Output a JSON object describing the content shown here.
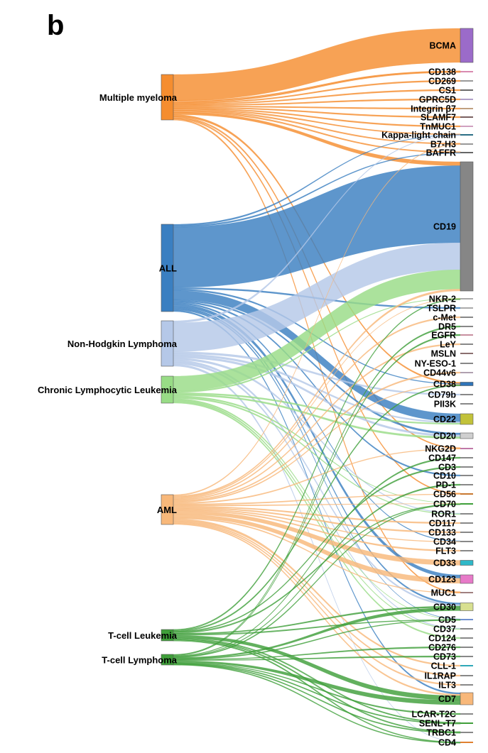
{
  "panel_label": "b",
  "chart_data": {
    "type": "sankey",
    "sources": [
      {
        "label": "Multiple myeloma",
        "color": "#f58d2f"
      },
      {
        "label": "ALL",
        "color": "#3a7fc1"
      },
      {
        "label": "Non-Hodgkin Lymphoma",
        "color": "#b5c8e8"
      },
      {
        "label": "Chronic Lymphocytic Leukemia",
        "color": "#98dc86"
      },
      {
        "label": "AML",
        "color": "#f8b87a"
      },
      {
        "label": "T-cell Leukemia",
        "color": "#3f9f3a"
      },
      {
        "label": "T-cell Lymphoma",
        "color": "#3f9f3a"
      }
    ],
    "targets": [
      {
        "label": "BCMA",
        "color": "#9b6bc9"
      },
      {
        "label": "CD138",
        "color": "#d98ab0"
      },
      {
        "label": "CD269",
        "color": "#999999"
      },
      {
        "label": "CS1",
        "color": "#6a6a6a"
      },
      {
        "label": "GPRC5D",
        "color": "#b0a0c8"
      },
      {
        "label": "Integrin β7",
        "color": "#c0a080"
      },
      {
        "label": "SLAMF7",
        "color": "#7a6060"
      },
      {
        "label": "TnMUC1",
        "color": "#d0a0c0"
      },
      {
        "label": "Kappa-light chain",
        "color": "#2b6f86"
      },
      {
        "label": "B7-H3",
        "color": "#999999"
      },
      {
        "label": "BAFFR",
        "color": "#666666"
      },
      {
        "label": "CD19",
        "color": "#868686"
      },
      {
        "label": "NKR-2",
        "color": "#aaaaaa"
      },
      {
        "label": "TSLPR",
        "color": "#aaaaaa"
      },
      {
        "label": "c-Met",
        "color": "#888888"
      },
      {
        "label": "DR5",
        "color": "#888888"
      },
      {
        "label": "EGFR",
        "color": "#c88fa0"
      },
      {
        "label": "LeY",
        "color": "#888888"
      },
      {
        "label": "MSLN",
        "color": "#8a6f6f"
      },
      {
        "label": "NY-ESO-1",
        "color": "#888888"
      },
      {
        "label": "CD44v6",
        "color": "#b0a0b0"
      },
      {
        "label": "CD38",
        "color": "#2f74b8"
      },
      {
        "label": "CD79b",
        "color": "#888888"
      },
      {
        "label": "PII3K",
        "color": "#888888"
      },
      {
        "label": "CD22",
        "color": "#c2c23a"
      },
      {
        "label": "CD20",
        "color": "#cfcfcf"
      },
      {
        "label": "NKG2D",
        "color": "#c078a8"
      },
      {
        "label": "CD147",
        "color": "#888888"
      },
      {
        "label": "CD3",
        "color": "#888888"
      },
      {
        "label": "CD10",
        "color": "#888888"
      },
      {
        "label": "PD-1",
        "color": "#888888"
      },
      {
        "label": "CD56",
        "color": "#c87830"
      },
      {
        "label": "CD70",
        "color": "#3f9f3a"
      },
      {
        "label": "ROR1",
        "color": "#888888"
      },
      {
        "label": "CD117",
        "color": "#888888"
      },
      {
        "label": "CD133",
        "color": "#888888"
      },
      {
        "label": "CD34",
        "color": "#888888"
      },
      {
        "label": "FLT3",
        "color": "#888888"
      },
      {
        "label": "CD33",
        "color": "#2fb8c8"
      },
      {
        "label": "CD123",
        "color": "#e77ac8"
      },
      {
        "label": "MUC1",
        "color": "#a08080"
      },
      {
        "label": "CD30",
        "color": "#d8e090"
      },
      {
        "label": "CD5",
        "color": "#7090d0"
      },
      {
        "label": "CD37",
        "color": "#888888"
      },
      {
        "label": "CD124",
        "color": "#888888"
      },
      {
        "label": "CD276",
        "color": "#888888"
      },
      {
        "label": "CD73",
        "color": "#888888"
      },
      {
        "label": "CLL-1",
        "color": "#2fa8b8"
      },
      {
        "label": "IL1RAP",
        "color": "#888888"
      },
      {
        "label": "ILT3",
        "color": "#888888"
      },
      {
        "label": "CD7",
        "color": "#f8b87a"
      },
      {
        "label": "LCAR-T2C",
        "color": "#888888"
      },
      {
        "label": "SENL-T7",
        "color": "#3f9f3a"
      },
      {
        "label": "TRBC1",
        "color": "#888888"
      },
      {
        "label": "CD4",
        "color": "#e08030"
      }
    ],
    "links": [
      {
        "source": "Multiple myeloma",
        "target": "BCMA",
        "value": 24
      },
      {
        "source": "Multiple myeloma",
        "target": "CD138",
        "value": 1
      },
      {
        "source": "Multiple myeloma",
        "target": "CD269",
        "value": 1
      },
      {
        "source": "Multiple myeloma",
        "target": "CS1",
        "value": 1
      },
      {
        "source": "Multiple myeloma",
        "target": "GPRC5D",
        "value": 1
      },
      {
        "source": "Multiple myeloma",
        "target": "Integrin β7",
        "value": 1
      },
      {
        "source": "Multiple myeloma",
        "target": "SLAMF7",
        "value": 1
      },
      {
        "source": "Multiple myeloma",
        "target": "TnMUC1",
        "value": 1
      },
      {
        "source": "Multiple myeloma",
        "target": "Kappa-light chain",
        "value": 1
      },
      {
        "source": "Multiple myeloma",
        "target": "B7-H3",
        "value": 1
      },
      {
        "source": "Multiple myeloma",
        "target": "BAFFR",
        "value": 1
      },
      {
        "source": "Multiple myeloma",
        "target": "CD19",
        "value": 2
      },
      {
        "source": "Multiple myeloma",
        "target": "CD38",
        "value": 2
      },
      {
        "source": "Multiple myeloma",
        "target": "CD138",
        "value": 1
      },
      {
        "source": "Multiple myeloma",
        "target": "NKG2D",
        "value": 1
      },
      {
        "source": "Multiple myeloma",
        "target": "CD56",
        "value": 1
      },
      {
        "source": "Multiple myeloma",
        "target": "MUC1",
        "value": 1
      },
      {
        "source": "ALL",
        "target": "CD19",
        "value": 40
      },
      {
        "source": "ALL",
        "target": "CD22",
        "value": 6
      },
      {
        "source": "ALL",
        "target": "CD20",
        "value": 1
      },
      {
        "source": "ALL",
        "target": "CD38",
        "value": 1
      },
      {
        "source": "ALL",
        "target": "TSLPR",
        "value": 1
      },
      {
        "source": "ALL",
        "target": "CD10",
        "value": 1
      },
      {
        "source": "ALL",
        "target": "CD123",
        "value": 2
      },
      {
        "source": "ALL",
        "target": "CD7",
        "value": 1
      },
      {
        "source": "ALL",
        "target": "CD5",
        "value": 1
      },
      {
        "source": "ALL",
        "target": "CD34",
        "value": 1
      },
      {
        "source": "ALL",
        "target": "Kappa-light chain",
        "value": 1
      },
      {
        "source": "ALL",
        "target": "BAFFR",
        "value": 1
      },
      {
        "source": "ALL",
        "target": "CD30",
        "value": 1
      },
      {
        "source": "Non-Hodgkin Lymphoma",
        "target": "CD19",
        "value": 14
      },
      {
        "source": "Non-Hodgkin Lymphoma",
        "target": "CD20",
        "value": 1
      },
      {
        "source": "Non-Hodgkin Lymphoma",
        "target": "CD22",
        "value": 1
      },
      {
        "source": "Non-Hodgkin Lymphoma",
        "target": "CD79b",
        "value": 1
      },
      {
        "source": "Non-Hodgkin Lymphoma",
        "target": "ROR1",
        "value": 1
      },
      {
        "source": "Non-Hodgkin Lymphoma",
        "target": "CD30",
        "value": 1
      },
      {
        "source": "Non-Hodgkin Lymphoma",
        "target": "CD37",
        "value": 1
      },
      {
        "source": "Non-Hodgkin Lymphoma",
        "target": "Kappa-light chain",
        "value": 1
      },
      {
        "source": "Non-Hodgkin Lymphoma",
        "target": "CD4",
        "value": 1
      },
      {
        "source": "Chronic Lymphocytic Leukemia",
        "target": "CD19",
        "value": 10
      },
      {
        "source": "Chronic Lymphocytic Leukemia",
        "target": "ROR1",
        "value": 1
      },
      {
        "source": "Chronic Lymphocytic Leukemia",
        "target": "CD20",
        "value": 1
      },
      {
        "source": "Chronic Lymphocytic Leukemia",
        "target": "CD22",
        "value": 1
      },
      {
        "source": "Chronic Lymphocytic Leukemia",
        "target": "CD5",
        "value": 1
      },
      {
        "source": "Chronic Lymphocytic Leukemia",
        "target": "CD37",
        "value": 1
      },
      {
        "source": "Chronic Lymphocytic Leukemia",
        "target": "CD70",
        "value": 1
      },
      {
        "source": "Chronic Lymphocytic Leukemia",
        "target": "NKR-2",
        "value": 1
      },
      {
        "source": "Chronic Lymphocytic Leukemia",
        "target": "CD124",
        "value": 1
      },
      {
        "source": "AML",
        "target": "CD33",
        "value": 3
      },
      {
        "source": "AML",
        "target": "CD123",
        "value": 3
      },
      {
        "source": "AML",
        "target": "CLL-1",
        "value": 2
      },
      {
        "source": "AML",
        "target": "NKG2D",
        "value": 1
      },
      {
        "source": "AML",
        "target": "CD38",
        "value": 1
      },
      {
        "source": "AML",
        "target": "FLT3",
        "value": 1
      },
      {
        "source": "AML",
        "target": "CD7",
        "value": 1
      },
      {
        "source": "AML",
        "target": "CD70",
        "value": 1
      },
      {
        "source": "AML",
        "target": "CD117",
        "value": 1
      },
      {
        "source": "AML",
        "target": "CD133",
        "value": 1
      },
      {
        "source": "AML",
        "target": "CD34",
        "value": 1
      },
      {
        "source": "AML",
        "target": "CD44v6",
        "value": 1
      },
      {
        "source": "AML",
        "target": "MUC1",
        "value": 1
      },
      {
        "source": "AML",
        "target": "LeY",
        "value": 1
      },
      {
        "source": "AML",
        "target": "IL1RAP",
        "value": 1
      },
      {
        "source": "AML",
        "target": "ILT3",
        "value": 1
      },
      {
        "source": "AML",
        "target": "NKR-2",
        "value": 1
      },
      {
        "source": "AML",
        "target": "c-Met",
        "value": 1
      },
      {
        "source": "AML",
        "target": "CD19",
        "value": 1
      },
      {
        "source": "AML",
        "target": "B7-H3",
        "value": 1
      },
      {
        "source": "AML",
        "target": "CD56",
        "value": 1
      },
      {
        "source": "T-cell Leukemia",
        "target": "CD7",
        "value": 3
      },
      {
        "source": "T-cell Leukemia",
        "target": "CD5",
        "value": 1
      },
      {
        "source": "T-cell Leukemia",
        "target": "CD30",
        "value": 1
      },
      {
        "source": "T-cell Leukemia",
        "target": "CD4",
        "value": 1
      },
      {
        "source": "T-cell Leukemia",
        "target": "CD3",
        "value": 1
      },
      {
        "source": "T-cell Leukemia",
        "target": "CD70",
        "value": 1
      },
      {
        "source": "T-cell Leukemia",
        "target": "CD38",
        "value": 1
      },
      {
        "source": "T-cell Leukemia",
        "target": "TRBC1",
        "value": 1
      },
      {
        "source": "T-cell Leukemia",
        "target": "SENL-T7",
        "value": 1
      },
      {
        "source": "T-cell Leukemia",
        "target": "NKR-2",
        "value": 1
      },
      {
        "source": "T-cell Lymphoma",
        "target": "CD7",
        "value": 3
      },
      {
        "source": "T-cell Lymphoma",
        "target": "CD30",
        "value": 2
      },
      {
        "source": "T-cell Lymphoma",
        "target": "CD5",
        "value": 1
      },
      {
        "source": "T-cell Lymphoma",
        "target": "CD4",
        "value": 1
      },
      {
        "source": "T-cell Lymphoma",
        "target": "LCAR-T2C",
        "value": 1
      },
      {
        "source": "T-cell Lymphoma",
        "target": "SENL-T7",
        "value": 1
      },
      {
        "source": "T-cell Lymphoma",
        "target": "TRBC1",
        "value": 1
      },
      {
        "source": "T-cell Lymphoma",
        "target": "CD70",
        "value": 1
      },
      {
        "source": "T-cell Lymphoma",
        "target": "CD147",
        "value": 1
      },
      {
        "source": "T-cell Lymphoma",
        "target": "PD-1",
        "value": 1
      },
      {
        "source": "T-cell Lymphoma",
        "target": "CD73",
        "value": 1
      },
      {
        "source": "T-cell Lymphoma",
        "target": "CD276",
        "value": 1
      },
      {
        "source": "T-cell Lymphoma",
        "target": "EGFR",
        "value": 1
      },
      {
        "source": "T-cell Lymphoma",
        "target": "DR5",
        "value": 1
      }
    ]
  }
}
